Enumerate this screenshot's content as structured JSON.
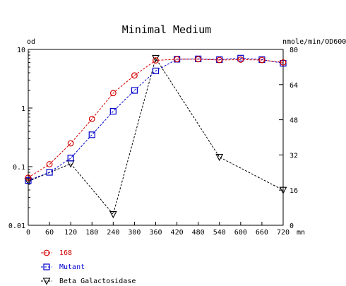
{
  "chart_data": {
    "type": "line",
    "title": "Minimal Medium",
    "xlabel": "mn",
    "ylabel_left": "od",
    "ylabel_right": "nmole/min/OD600",
    "x": [
      0,
      60,
      120,
      180,
      240,
      300,
      360,
      420,
      480,
      540,
      600,
      660,
      720
    ],
    "x_ticks": [
      0,
      60,
      120,
      180,
      240,
      300,
      360,
      420,
      480,
      540,
      600,
      660,
      720
    ],
    "xlim": [
      0,
      720
    ],
    "ylim_left": [
      0.01,
      10
    ],
    "y_left_scale": "log",
    "y_left_ticks": [
      {
        "value": 0.01,
        "label": "0.01"
      },
      {
        "value": 0.1,
        "label": "0.1"
      },
      {
        "value": 1,
        "label": "1"
      },
      {
        "value": 10,
        "label": "10"
      }
    ],
    "ylim_right": [
      0,
      80
    ],
    "y_right_ticks": [
      0,
      16,
      32,
      48,
      64,
      80
    ],
    "grid": false,
    "legend_position": "bottom-left",
    "series": [
      {
        "name": "168",
        "axis": "left",
        "color": "#d40000",
        "marker": "circle",
        "x": [
          0,
          60,
          120,
          180,
          240,
          300,
          360,
          420,
          480,
          540,
          600,
          660,
          720
        ],
        "values": [
          0.065,
          0.11,
          0.25,
          0.65,
          1.8,
          3.6,
          6.5,
          6.8,
          6.8,
          6.6,
          6.7,
          6.6,
          6.0
        ]
      },
      {
        "name": "Mutant",
        "axis": "left",
        "color": "#0000cc",
        "marker": "square",
        "x": [
          0,
          60,
          120,
          180,
          240,
          300,
          360,
          420,
          480,
          540,
          600,
          660,
          720
        ],
        "values": [
          0.058,
          0.08,
          0.14,
          0.35,
          0.88,
          2.0,
          4.3,
          6.8,
          6.9,
          6.7,
          7.1,
          6.7,
          5.8
        ]
      },
      {
        "name": "Beta Galactosidase",
        "axis": "right",
        "color": "#000000",
        "marker": "triangle-down",
        "x": [
          0,
          120,
          240,
          360,
          540,
          720
        ],
        "values": [
          20,
          28,
          5,
          76,
          31,
          16
        ]
      }
    ]
  }
}
